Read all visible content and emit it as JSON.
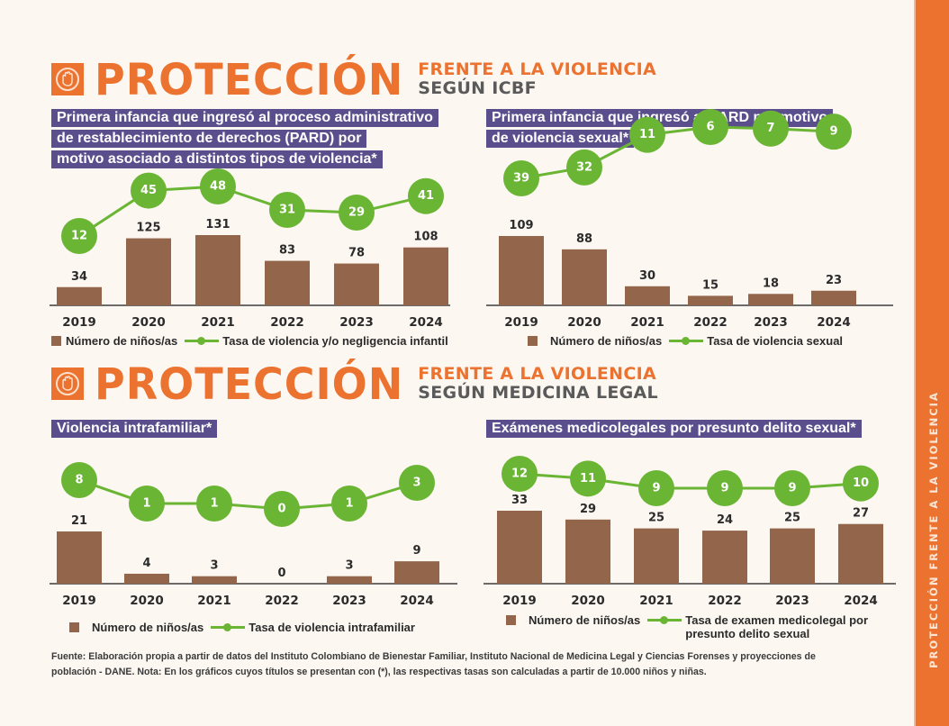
{
  "sidebar": {
    "text": "PROTECCIÓN FRENTE A LA VIOLENCIA"
  },
  "sections": [
    {
      "heading": "PROTECCIÓN",
      "sub1": "FRENTE A LA VIOLENCIA",
      "sub2": "SEGÚN ICBF",
      "icon": "stop-hand-icon"
    },
    {
      "heading": "PROTECCIÓN",
      "sub1": "FRENTE A LA VIOLENCIA",
      "sub2": "SEGÚN MEDICINA LEGAL",
      "icon": "stop-hand-icon"
    }
  ],
  "colors": {
    "accent_orange": "#ec7230",
    "title_banner": "#5a4f8c",
    "bar": "#93654a",
    "rate": "#6bb535"
  },
  "chart_data": [
    {
      "type": "bar",
      "title_lines": [
        "Primera infancia que ingresó al proceso administrativo",
        "de restablecimiento de derechos (PARD) por",
        "motivo asociado a distintos tipos de  violencia*"
      ],
      "categories": [
        "2019",
        "2020",
        "2021",
        "2022",
        "2023",
        "2024"
      ],
      "series": [
        {
          "name": "Número de niños/as",
          "kind": "bar",
          "values": [
            34,
            125,
            131,
            83,
            78,
            108
          ]
        },
        {
          "name": "Tasa de violencia y/o negligencia infantil",
          "kind": "line",
          "values": [
            12,
            45,
            48,
            31,
            29,
            41
          ]
        }
      ],
      "legend": [
        "Número de niños/as",
        "Tasa de violencia y/o negligencia infantil"
      ],
      "legend_position": "bottom",
      "grid": false
    },
    {
      "type": "bar",
      "title_lines": [
        "Primera infancia que ingresó al PARD por motivo",
        "de violencia sexual*"
      ],
      "categories": [
        "2019",
        "2020",
        "2021",
        "2022",
        "2023",
        "2024"
      ],
      "series": [
        {
          "name": "Número de niños/as",
          "kind": "bar",
          "values": [
            109,
            88,
            30,
            15,
            18,
            23
          ]
        },
        {
          "name": "Tasa de violencia sexual",
          "kind": "line",
          "values": [
            39,
            32,
            11,
            6,
            7,
            9
          ]
        }
      ],
      "legend": [
        "Número de niños/as",
        "Tasa de violencia sexual"
      ],
      "legend_position": "bottom",
      "grid": false
    },
    {
      "type": "bar",
      "title_lines": [
        "Violencia intrafamiliar*"
      ],
      "categories": [
        "2019",
        "2020",
        "2021",
        "2022",
        "2023",
        "2024"
      ],
      "series": [
        {
          "name": "Número de niños/as",
          "kind": "bar",
          "values": [
            21,
            4,
            3,
            0,
            3,
            9
          ]
        },
        {
          "name": "Tasa de violencia intrafamiliar",
          "kind": "line",
          "values": [
            8,
            1,
            1,
            0,
            1,
            3
          ]
        }
      ],
      "legend": [
        "Número de niños/as",
        "Tasa de violencia intrafamiliar"
      ],
      "legend_position": "bottom",
      "grid": false
    },
    {
      "type": "bar",
      "title_lines": [
        "Exámenes medicolegales por presunto delito sexual*"
      ],
      "categories": [
        "2019",
        "2020",
        "2021",
        "2022",
        "2023",
        "2024"
      ],
      "series": [
        {
          "name": "Número de niños/as",
          "kind": "bar",
          "values": [
            33,
            29,
            25,
            24,
            25,
            27
          ]
        },
        {
          "name": "Tasa de examen medicolegal por presunto delito sexual",
          "kind": "line",
          "values": [
            12,
            11,
            9,
            9,
            9,
            10
          ]
        }
      ],
      "legend": [
        "Número de niños/as",
        "Tasa de examen medicolegal por\npresunto delito sexual"
      ],
      "legend_position": "bottom",
      "grid": false
    }
  ],
  "footer": {
    "line1": "Fuente: Elaboración propia a partir de datos del Instituto Colombiano de Bienestar Familiar, Instituto Nacional de Medicina Legal y Ciencias Forenses y proyecciones de",
    "line2": "población - DANE.  Nota: En los gráficos cuyos títulos se presentan con (*), las respectivas tasas son calculadas a partir de 10.000 niños y niñas."
  }
}
